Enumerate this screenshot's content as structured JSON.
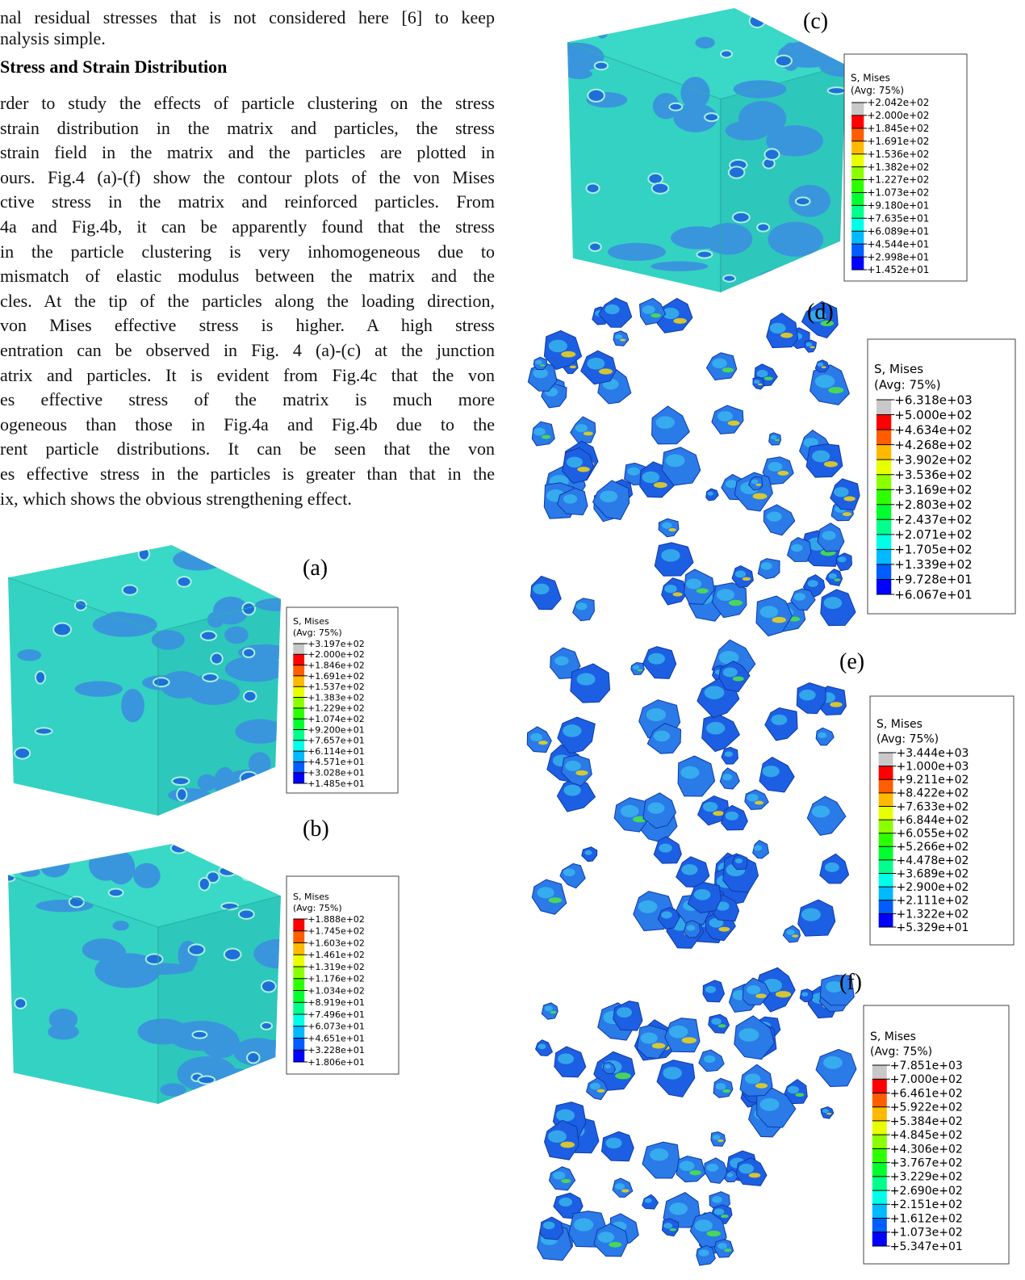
{
  "intro_lines": [
    "nal residual stresses that is not considered here [6] to keep",
    "nalysis simple."
  ],
  "section": {
    "heading": "Stress and Strain Distribution",
    "lines": [
      "rder to study the effects of particle clustering on the stress",
      "strain distribution in the matrix and particles, the stress",
      "strain field in the matrix and the particles are plotted in",
      "ours. Fig.4 (a)-(f) show the contour plots of the von Mises",
      "ctive stress in the matrix and reinforced particles. From",
      "4a and Fig.4b, it can be apparently found that the stress",
      "in the particle clustering is very inhomogeneous due to",
      "mismatch of elastic modulus between the matrix and the",
      "cles. At the tip of the particles along the loading direction,",
      "von Mises effective stress is higher. A high stress",
      "entration can be observed in Fig. 4 (a)-(c) at the junction",
      "atrix and particles. It is evident from Fig.4c that the von",
      "es effective stress of the matrix is much more",
      "ogeneous than those in Fig.4a and Fig.4b due to the",
      "rent particle distributions. It can be seen that the von",
      "es effective stress in the particles is greater than that in the",
      "ix, which shows the obvious strengthening effect."
    ]
  },
  "panels": [
    {
      "label": "(a)",
      "legend_title": "S, Mises",
      "legend_subtitle": "(Avg: 75%)",
      "levels": [
        "+3.197e+02",
        "+2.000e+02",
        "+1.846e+02",
        "+1.691e+02",
        "+1.537e+02",
        "+1.383e+02",
        "+1.229e+02",
        "+1.074e+02",
        "+9.200e+01",
        "+7.657e+01",
        "+6.114e+01",
        "+4.571e+01",
        "+3.028e+01",
        "+1.485e+01"
      ]
    },
    {
      "label": "(b)",
      "legend_title": "S, Mises",
      "legend_subtitle": "(Avg: 75%)",
      "levels": [
        "+1.888e+02",
        "+1.745e+02",
        "+1.603e+02",
        "+1.461e+02",
        "+1.319e+02",
        "+1.176e+02",
        "+1.034e+02",
        "+8.919e+01",
        "+7.496e+01",
        "+6.073e+01",
        "+4.651e+01",
        "+3.228e+01",
        "+1.806e+01"
      ]
    },
    {
      "label": "(c)",
      "legend_title": "S, Mises",
      "legend_subtitle": "(Avg: 75%)",
      "levels": [
        "+2.042e+02",
        "+2.000e+02",
        "+1.845e+02",
        "+1.691e+02",
        "+1.536e+02",
        "+1.382e+02",
        "+1.227e+02",
        "+1.073e+02",
        "+9.180e+01",
        "+7.635e+01",
        "+6.089e+01",
        "+4.544e+01",
        "+2.998e+01",
        "+1.452e+01"
      ]
    },
    {
      "label": "(d)",
      "legend_title": "S, Mises",
      "legend_subtitle": "(Avg: 75%)",
      "levels": [
        "+6.318e+03",
        "+5.000e+02",
        "+4.634e+02",
        "+4.268e+02",
        "+3.902e+02",
        "+3.536e+02",
        "+3.169e+02",
        "+2.803e+02",
        "+2.437e+02",
        "+2.071e+02",
        "+1.705e+02",
        "+1.339e+02",
        "+9.728e+01",
        "+6.067e+01"
      ]
    },
    {
      "label": "(e)",
      "legend_title": "S, Mises",
      "legend_subtitle": "(Avg: 75%)",
      "levels": [
        "+3.444e+03",
        "+1.000e+03",
        "+9.211e+02",
        "+8.422e+02",
        "+7.633e+02",
        "+6.844e+02",
        "+6.055e+02",
        "+5.266e+02",
        "+4.478e+02",
        "+3.689e+02",
        "+2.900e+02",
        "+2.111e+02",
        "+1.322e+02",
        "+5.329e+01"
      ]
    },
    {
      "label": "(f)",
      "legend_title": "S, Mises",
      "legend_subtitle": "(Avg: 75%)",
      "levels": [
        "+7.851e+03",
        "+7.000e+02",
        "+6.461e+02",
        "+5.922e+02",
        "+5.384e+02",
        "+4.845e+02",
        "+4.306e+02",
        "+3.767e+02",
        "+3.229e+02",
        "+2.690e+02",
        "+2.151e+02",
        "+1.612e+02",
        "+1.073e+02",
        "+5.347e+01"
      ]
    }
  ]
}
